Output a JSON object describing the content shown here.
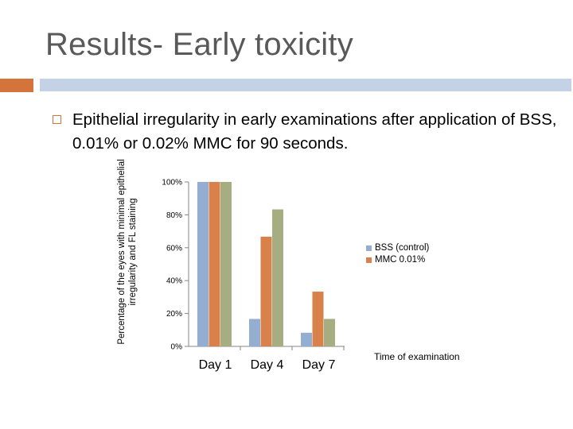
{
  "slide": {
    "title": "Results- Early toxicity",
    "bullet": "Epithelial irregularity in early examinations after application of BSS, 0.01% or 0.02% MMC for 90 seconds."
  },
  "colors": {
    "accent": "#d5743a",
    "bar_strip": "#c3d2e4"
  },
  "chart_data": {
    "type": "bar",
    "categories": [
      "Day 1",
      "Day 4",
      "Day 7"
    ],
    "series": [
      {
        "name": "BSS (control)",
        "values": [
          100,
          16.7,
          8.3
        ],
        "color": "#94aed2"
      },
      {
        "name": "MMC 0.01%",
        "values": [
          100,
          66.7,
          33.3
        ],
        "color": "#d9814a"
      },
      {
        "values": [
          100,
          83.3,
          16.7
        ],
        "color": "#a6ad81"
      }
    ],
    "ylabel": "Percentage of the eyes with minimal epithelial irregularity and FL staining",
    "xlabel": "Time of examination",
    "ylim": [
      0,
      100
    ],
    "yticks": [
      "0%",
      "20%",
      "40%",
      "60%",
      "80%",
      "100%"
    ],
    "legend_position": "right",
    "grid": false
  }
}
